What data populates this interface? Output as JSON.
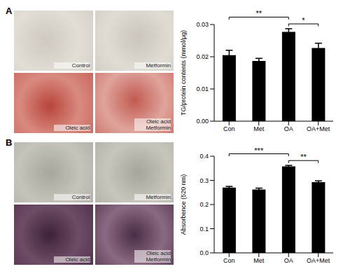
{
  "chart_data": [
    {
      "type": "bar",
      "panel": "A",
      "image_labels": [
        "Control",
        "Metformin",
        "Oleic acid",
        "Oleic acid Metformin"
      ],
      "y_label": "TG/protein contents (mmol/μg)",
      "categories": [
        "Con",
        "Met",
        "OA",
        "OA+Met"
      ],
      "values": [
        0.0205,
        0.0187,
        0.0277,
        0.0227
      ],
      "errors": [
        0.0015,
        0.0008,
        0.001,
        0.0015
      ],
      "color": "#000000",
      "ylim": [
        0,
        0.03
      ],
      "yticks": [
        {
          "value": 0,
          "label": "0.00"
        },
        0.01,
        0.02,
        0.03
      ],
      "annotations": [
        {
          "text": "**",
          "from": "Con",
          "to": "OA"
        },
        {
          "text": "*",
          "from": "OA",
          "to": "OA+Met"
        }
      ]
    },
    {
      "type": "bar",
      "panel": "B",
      "image_labels": [
        "Control",
        "Metformin",
        "Oleic acid",
        "Oleic acid Metformin"
      ],
      "y_label": "Absorbence (520 nm)",
      "categories": [
        "Con",
        "Met",
        "OA",
        "OA+Met"
      ],
      "values": [
        0.27,
        0.262,
        0.358,
        0.293
      ],
      "errors": [
        0.005,
        0.006,
        0.004,
        0.005
      ],
      "color": "#000000",
      "ylim": [
        0,
        0.4
      ],
      "yticks": [
        {
          "value": 0,
          "label": "0.0"
        },
        0.1,
        0.2,
        0.3,
        0.4
      ],
      "annotations": [
        {
          "text": "***",
          "from": "Con",
          "to": "OA"
        },
        {
          "text": "**",
          "from": "OA",
          "to": "OA+Met"
        }
      ]
    }
  ]
}
